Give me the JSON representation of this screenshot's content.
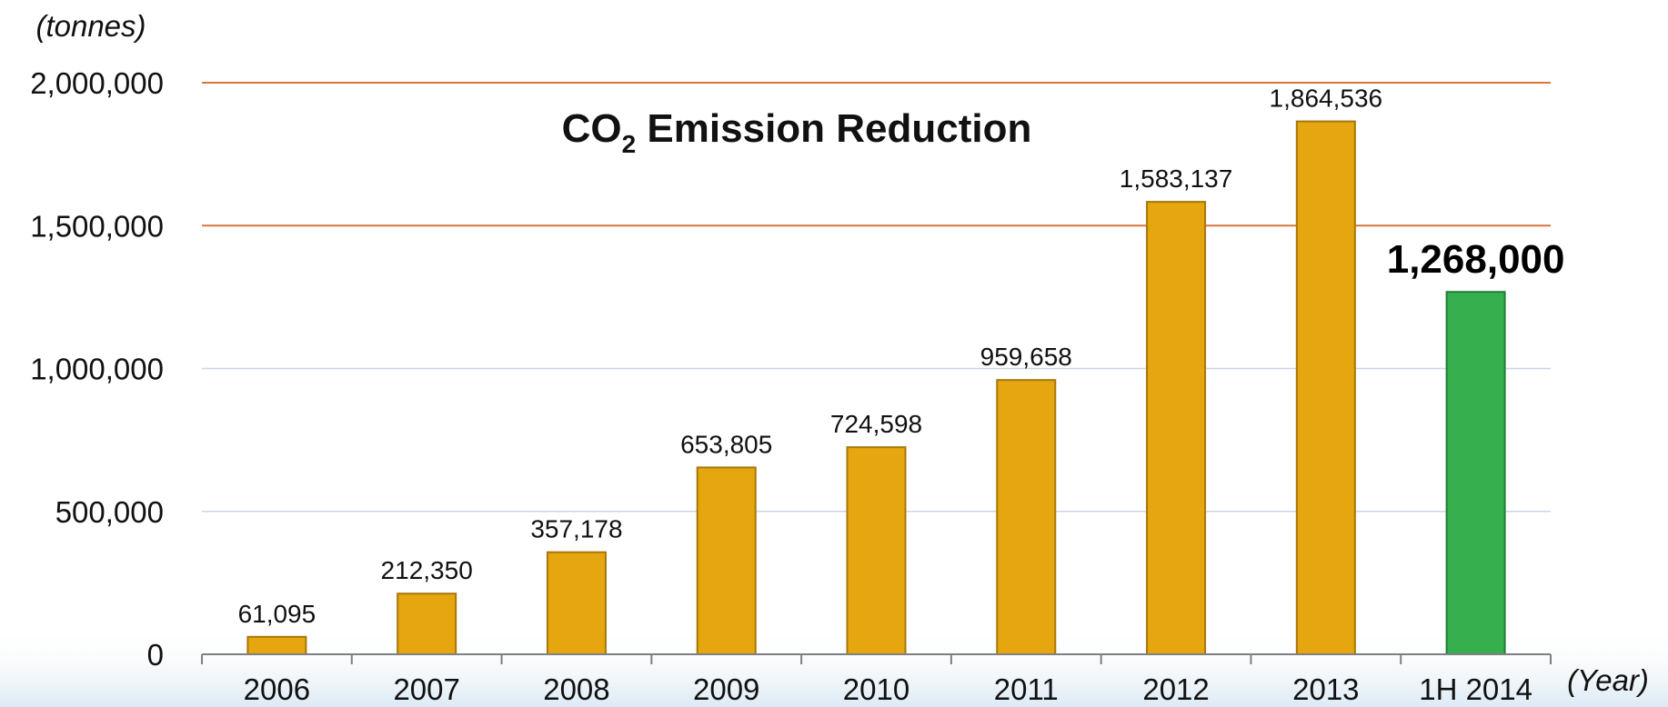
{
  "chart_data": {
    "type": "bar",
    "title_prefix": "CO",
    "title_subscript": "2",
    "title_suffix": " Emission Reduction",
    "ylabel": "(tonnes)",
    "xlabel": "(Year)",
    "ylim": [
      0,
      2000000
    ],
    "yticks": [
      {
        "value": 0,
        "label": "0"
      },
      {
        "value": 500000,
        "label": "500,000"
      },
      {
        "value": 1000000,
        "label": "1,000,000"
      },
      {
        "value": 1500000,
        "label": "1,500,000"
      },
      {
        "value": 2000000,
        "label": "2,000,000"
      }
    ],
    "categories": [
      "2006",
      "2007",
      "2008",
      "2009",
      "2010",
      "2011",
      "2012",
      "2013",
      "1H 2014"
    ],
    "values": [
      61095,
      212350,
      357178,
      653805,
      724598,
      959658,
      1583137,
      1864536,
      1268000
    ],
    "value_labels": [
      "61,095",
      "212,350",
      "357,178",
      "653,805",
      "724,598",
      "959,658",
      "1,583,137",
      "1,864,536",
      "1,268,000"
    ],
    "highlight_index": 8,
    "colors": {
      "bar": "#E5A60F",
      "bar_edge": "#A77708",
      "highlight_bar": "#36B04F",
      "highlight_edge": "#1F7F34",
      "grid_major": "#D9773A",
      "grid_minor": "#C9D6E6",
      "axis": "#7F7F7F"
    }
  }
}
